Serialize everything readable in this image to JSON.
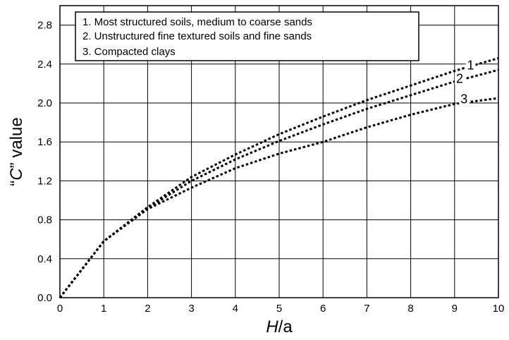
{
  "chart_data": {
    "type": "line",
    "title": "",
    "xlabel": {
      "italic": "H",
      "rest": "/a"
    },
    "ylabel": {
      "open": "“",
      "italic": "C",
      "rest": "” value"
    },
    "xlim": [
      0,
      10
    ],
    "ylim": [
      0,
      3.0
    ],
    "x_ticks": [
      "0",
      "1",
      "2",
      "3",
      "4",
      "5",
      "6",
      "7",
      "8",
      "9",
      "10"
    ],
    "y_ticks": [
      "0.0",
      "0.4",
      "0.8",
      "1.2",
      "1.6",
      "2.0",
      "2.4",
      "2.8"
    ],
    "grid": true,
    "line_style": "dotted",
    "legend_position": "top-left",
    "legend": [
      "1. Most structured soils, medium to coarse sands",
      "2. Unstructured fine textured soils and fine sands",
      "3. Compacted clays"
    ],
    "series": [
      {
        "label": "1",
        "x": [
          0,
          1,
          2,
          3,
          4,
          5,
          6,
          7,
          8,
          9,
          10
        ],
        "y": [
          0,
          0.58,
          0.93,
          1.24,
          1.47,
          1.68,
          1.86,
          2.03,
          2.18,
          2.33,
          2.46
        ]
      },
      {
        "label": "2",
        "x": [
          0,
          1,
          2,
          3,
          4,
          5,
          6,
          7,
          8,
          9,
          10
        ],
        "y": [
          0,
          0.58,
          0.92,
          1.2,
          1.42,
          1.61,
          1.78,
          1.94,
          2.08,
          2.22,
          2.34
        ]
      },
      {
        "label": "3",
        "x": [
          0,
          1,
          2,
          3,
          4,
          5,
          6,
          7,
          8,
          9,
          10
        ],
        "y": [
          0,
          0.58,
          0.91,
          1.13,
          1.33,
          1.48,
          1.6,
          1.75,
          1.88,
          1.99,
          2.05
        ]
      }
    ]
  }
}
